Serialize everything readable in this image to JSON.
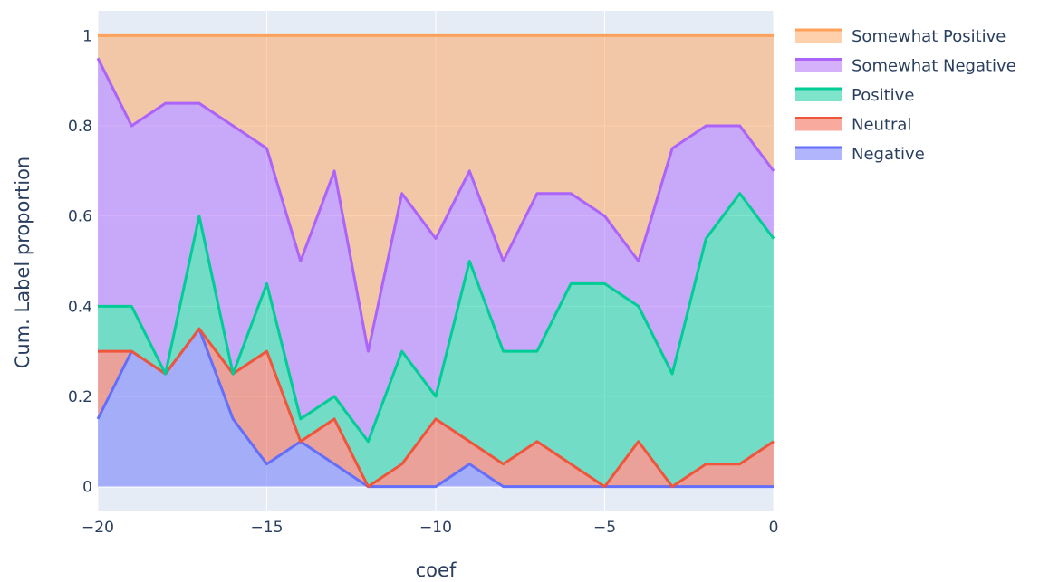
{
  "chart_data": {
    "type": "area",
    "xlabel": "coef",
    "ylabel": "Cum. Label proportion",
    "xlim": [
      -20,
      0
    ],
    "ylim": [
      -0.055,
      1.055
    ],
    "x_ticks": [
      -20,
      -15,
      -10,
      -5,
      0
    ],
    "x_tick_labels": [
      "−20",
      "−15",
      "−10",
      "−5",
      "0"
    ],
    "y_ticks": [
      0,
      0.2,
      0.4,
      0.6,
      0.8,
      1
    ],
    "y_tick_labels": [
      "0",
      "0.2",
      "0.4",
      "0.6",
      "0.8",
      "1"
    ],
    "grid": true,
    "legend_position": "right",
    "x": [
      -20,
      -19,
      -18,
      -17,
      -16,
      -15,
      -14,
      -13,
      -12,
      -11,
      -10,
      -9,
      -8,
      -7,
      -6,
      -5,
      -4,
      -3,
      -2,
      -1,
      0
    ],
    "series": [
      {
        "name": "Negative",
        "color": "#636efa",
        "values": [
          0.15,
          0.3,
          0.25,
          0.35,
          0.15,
          0.05,
          0.1,
          0.05,
          0.0,
          0.0,
          0.0,
          0.05,
          0.0,
          0.0,
          0.0,
          0.0,
          0.0,
          0.0,
          0.0,
          0.0,
          0.0
        ]
      },
      {
        "name": "Neutral",
        "color": "#EF553B",
        "values": [
          0.3,
          0.3,
          0.25,
          0.35,
          0.25,
          0.3,
          0.1,
          0.15,
          0.0,
          0.05,
          0.15,
          0.1,
          0.05,
          0.1,
          0.05,
          0.0,
          0.1,
          0.0,
          0.05,
          0.05,
          0.1
        ]
      },
      {
        "name": "Positive",
        "color": "#00cc96",
        "values": [
          0.4,
          0.4,
          0.25,
          0.6,
          0.25,
          0.45,
          0.15,
          0.2,
          0.1,
          0.3,
          0.2,
          0.5,
          0.3,
          0.3,
          0.45,
          0.45,
          0.4,
          0.25,
          0.55,
          0.65,
          0.55
        ]
      },
      {
        "name": "Somewhat Negative",
        "color": "#ab63fa",
        "values": [
          0.95,
          0.8,
          0.85,
          0.85,
          0.8,
          0.75,
          0.5,
          0.7,
          0.3,
          0.65,
          0.55,
          0.7,
          0.5,
          0.65,
          0.65,
          0.6,
          0.5,
          0.75,
          0.8,
          0.8,
          0.7
        ]
      },
      {
        "name": "Somewhat Positive",
        "color": "#FFA15A",
        "values": [
          1,
          1,
          1,
          1,
          1,
          1,
          1,
          1,
          1,
          1,
          1,
          1,
          1,
          1,
          1,
          1,
          1,
          1,
          1,
          1,
          1
        ]
      }
    ],
    "legend_order": [
      "Somewhat Positive",
      "Somewhat Negative",
      "Positive",
      "Neutral",
      "Negative"
    ],
    "plot_background": "#e5ecf6",
    "grid_color": "#ffffff",
    "text_color": "#2a3f5f"
  }
}
